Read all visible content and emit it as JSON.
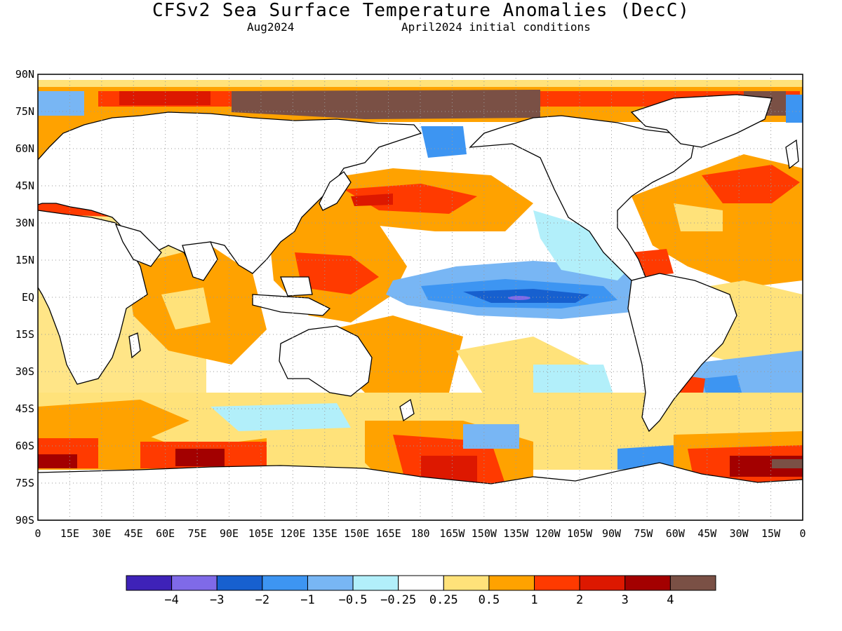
{
  "title": "CFSv2 Sea Surface Temperature Anomalies (DecC)",
  "subtitle_left": "Aug2024",
  "subtitle_right": "April2024 initial conditions",
  "lat_labels": [
    "90N",
    "75N",
    "60N",
    "45N",
    "30N",
    "15N",
    "EQ",
    "15S",
    "30S",
    "45S",
    "60S",
    "75S",
    "90S"
  ],
  "lon_labels": [
    "0",
    "15E",
    "30E",
    "45E",
    "60E",
    "75E",
    "90E",
    "105E",
    "120E",
    "135E",
    "150E",
    "165E",
    "180",
    "165W",
    "150W",
    "135W",
    "120W",
    "105W",
    "90W",
    "75W",
    "60W",
    "45W",
    "30W",
    "15W",
    "0"
  ],
  "colorbar": {
    "colors": [
      "#3e22b8",
      "#7f6ae8",
      "#1760cf",
      "#3d95f2",
      "#78b6f4",
      "#b2effa",
      "#ffffff",
      "#ffe27a",
      "#ffa200",
      "#ff3a00",
      "#dd1800",
      "#a30000",
      "#7a5045"
    ],
    "labels": [
      "-4",
      "-3",
      "-2",
      "-1",
      "-0.5",
      "-0.25",
      "0.25",
      "0.5",
      "1",
      "2",
      "3",
      "4"
    ]
  },
  "colors": {
    "land": "#ffffff",
    "coast": "#000000",
    "grid": "#9a9a9a"
  }
}
